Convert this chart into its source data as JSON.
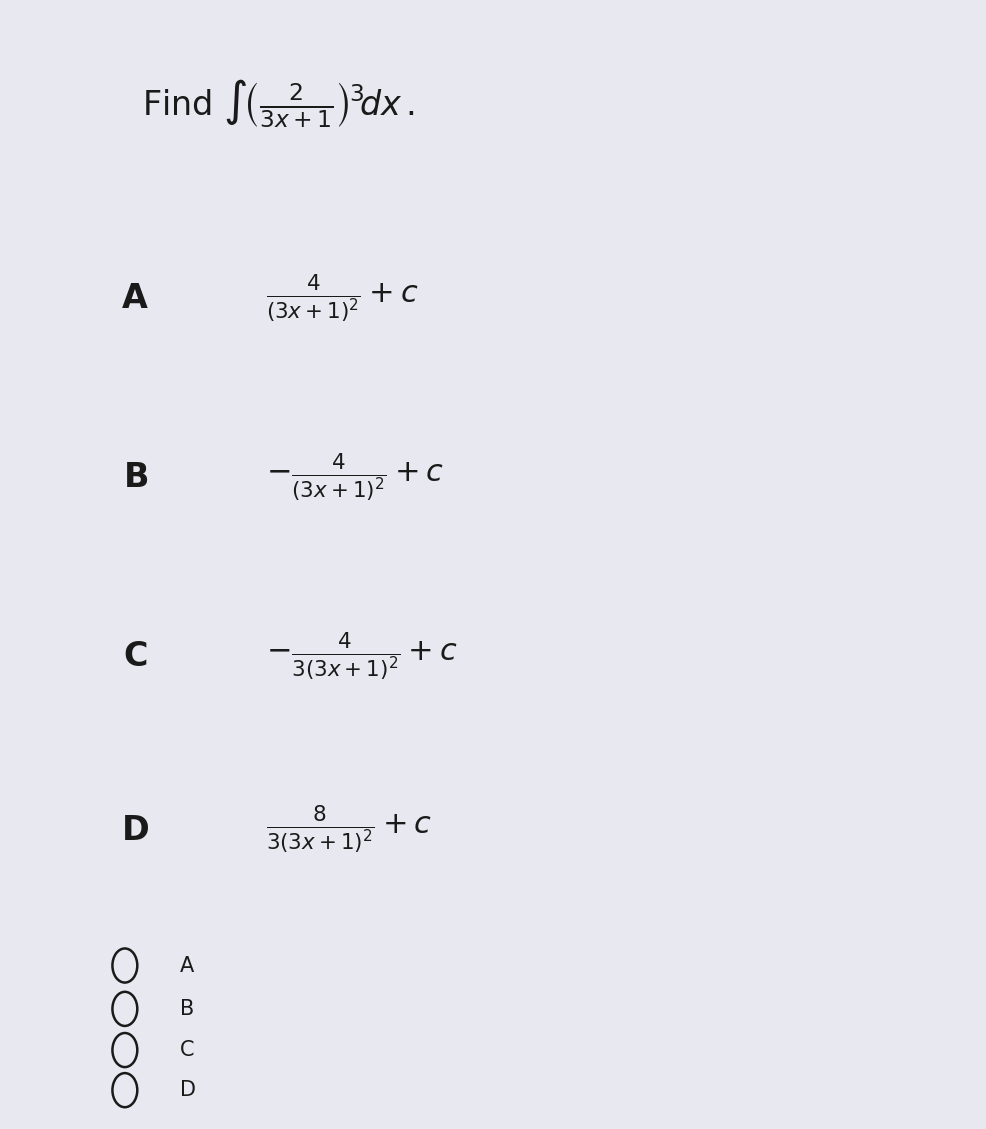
{
  "bg_color": "#e8e8f0",
  "panel_color": "#ffffff",
  "text_color": "#1a1a1a",
  "title_fontsize": 24,
  "label_fontsize": 22,
  "formula_fontsize": 19,
  "radio_fontsize": 15,
  "option_labels": [
    "A",
    "B",
    "C",
    "D"
  ],
  "radio_labels": [
    "A",
    "B",
    "C",
    "D"
  ]
}
